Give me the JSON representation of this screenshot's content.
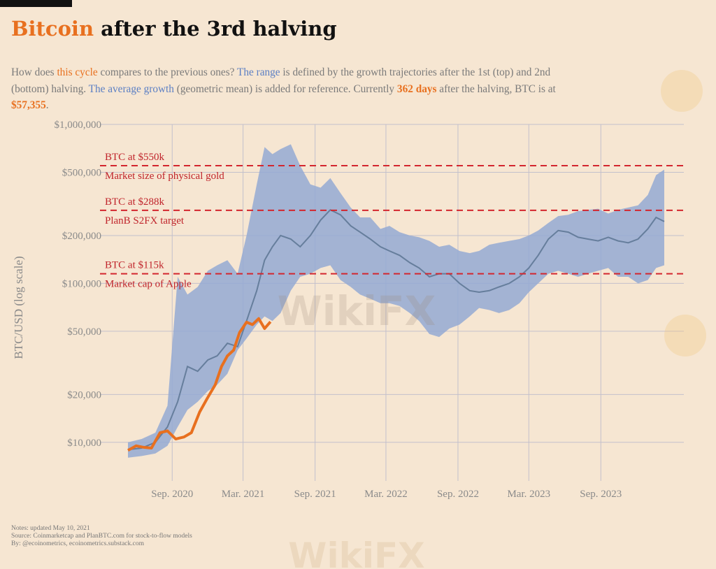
{
  "title": {
    "accent": "Bitcoin",
    "rest": " after the 3rd halving"
  },
  "subtitle": {
    "p1": "How does ",
    "this_cycle": "this cycle",
    "p2": " compares to the previous ones? ",
    "the_range": "The range",
    "p3": " is defined by the growth trajectories after the 1st (top) and 2nd (bottom) halving. ",
    "avg_growth": "The average growth",
    "p4": " (geometric mean) is added for reference. Currently ",
    "days": "362 days",
    "p5": " after the halving, BTC is at ",
    "price": "$57,355",
    "p6": "."
  },
  "notes": [
    "Notes: updated May 10, 2021",
    "Source: Coinmarketcap and PlanBTC.com for stock-to-flow models",
    "By: @ecoinometrics, ecoinometrics.substack.com"
  ],
  "watermark": "WikiFX",
  "colors": {
    "background": "#f6e6d2",
    "current_cycle": "#e8701f",
    "range_band": "#94a9d4",
    "average": "#667e9c",
    "reference_line": "#d3262e",
    "grid": "#c3c0cc"
  },
  "chart_data": {
    "type": "area",
    "ylabel": "BTC/USD (log scale)",
    "yscale": "log",
    "ylim": [
      7000,
      1000000
    ],
    "xlim": [
      "2020-05-11",
      "2024-03-31"
    ],
    "y_ticks": [
      {
        "value": 10000,
        "label": "$10,000"
      },
      {
        "value": 20000,
        "label": "$20,000"
      },
      {
        "value": 50000,
        "label": "$50,000"
      },
      {
        "value": 100000,
        "label": "$100,000"
      },
      {
        "value": 200000,
        "label": "$200,000"
      },
      {
        "value": 500000,
        "label": "$500,000"
      },
      {
        "value": 1000000,
        "label": "$1,000,000"
      }
    ],
    "x_ticks": [
      {
        "date": "2020-09-01",
        "label": "Sep. 2020"
      },
      {
        "date": "2021-03-01",
        "label": "Mar. 2021"
      },
      {
        "date": "2021-09-01",
        "label": "Sep. 2021"
      },
      {
        "date": "2022-03-01",
        "label": "Mar. 2022"
      },
      {
        "date": "2022-09-01",
        "label": "Sep. 2022"
      },
      {
        "date": "2023-03-01",
        "label": "Mar. 2023"
      },
      {
        "date": "2023-09-01",
        "label": "Sep. 2023"
      }
    ],
    "reference_lines": [
      {
        "value": 550000,
        "label": "BTC at $550k",
        "note": "Market size of physical gold"
      },
      {
        "value": 288000,
        "label": "BTC at $288k",
        "note": "PlanB S2FX target"
      },
      {
        "value": 115000,
        "label": "BTC at $115k",
        "note": "Market cap of Apple"
      }
    ],
    "range": {
      "name": "The range",
      "x": [
        "2020-05-11",
        "2020-06-15",
        "2020-07-20",
        "2020-08-20",
        "2020-09-15",
        "2020-10-10",
        "2020-11-05",
        "2020-12-01",
        "2020-12-25",
        "2021-01-20",
        "2021-02-15",
        "2021-03-10",
        "2021-04-05",
        "2021-04-25",
        "2021-05-15",
        "2021-06-05",
        "2021-07-01",
        "2021-07-25",
        "2021-08-20",
        "2021-09-15",
        "2021-10-10",
        "2021-11-05",
        "2021-12-01",
        "2021-12-25",
        "2022-01-20",
        "2022-02-15",
        "2022-03-10",
        "2022-04-05",
        "2022-05-01",
        "2022-05-25",
        "2022-06-20",
        "2022-07-15",
        "2022-08-10",
        "2022-09-05",
        "2022-10-01",
        "2022-10-25",
        "2022-11-20",
        "2022-12-15",
        "2023-01-10",
        "2023-02-05",
        "2023-03-01",
        "2023-03-25",
        "2023-04-20",
        "2023-05-15",
        "2023-06-10",
        "2023-07-05",
        "2023-07-30",
        "2023-08-25",
        "2023-09-20",
        "2023-10-15",
        "2023-11-10",
        "2023-12-05",
        "2023-12-30",
        "2024-01-20",
        "2024-02-10"
      ],
      "high": [
        10000,
        10500,
        11500,
        17000,
        110000,
        85000,
        95000,
        120000,
        130000,
        140000,
        115000,
        200000,
        420000,
        720000,
        650000,
        700000,
        750000,
        550000,
        420000,
        400000,
        460000,
        370000,
        300000,
        260000,
        260000,
        220000,
        230000,
        210000,
        200000,
        195000,
        185000,
        170000,
        175000,
        160000,
        155000,
        160000,
        175000,
        180000,
        185000,
        190000,
        200000,
        215000,
        240000,
        265000,
        270000,
        285000,
        290000,
        295000,
        275000,
        290000,
        300000,
        310000,
        360000,
        480000,
        520000
      ],
      "low": [
        8000,
        8200,
        8500,
        9500,
        12500,
        16000,
        18000,
        21000,
        23000,
        27000,
        38000,
        45000,
        55000,
        62000,
        58000,
        65000,
        90000,
        110000,
        115000,
        125000,
        130000,
        105000,
        95000,
        85000,
        80000,
        75000,
        75000,
        72000,
        65000,
        58000,
        48000,
        46000,
        52000,
        55000,
        62000,
        70000,
        68000,
        65000,
        68000,
        75000,
        88000,
        100000,
        115000,
        120000,
        115000,
        110000,
        115000,
        120000,
        125000,
        110000,
        110000,
        100000,
        105000,
        125000,
        130000
      ]
    },
    "average": {
      "name": "The average growth",
      "x": [
        "2020-05-11",
        "2020-06-15",
        "2020-07-20",
        "2020-08-20",
        "2020-09-15",
        "2020-10-10",
        "2020-11-05",
        "2020-12-01",
        "2020-12-25",
        "2021-01-20",
        "2021-02-15",
        "2021-03-10",
        "2021-04-05",
        "2021-04-25",
        "2021-05-15",
        "2021-06-05",
        "2021-07-01",
        "2021-07-25",
        "2021-08-20",
        "2021-09-15",
        "2021-10-10",
        "2021-11-05",
        "2021-12-01",
        "2021-12-25",
        "2022-01-20",
        "2022-02-15",
        "2022-03-10",
        "2022-04-05",
        "2022-05-01",
        "2022-05-25",
        "2022-06-20",
        "2022-07-15",
        "2022-08-10",
        "2022-09-05",
        "2022-10-01",
        "2022-10-25",
        "2022-11-20",
        "2022-12-15",
        "2023-01-10",
        "2023-02-05",
        "2023-03-01",
        "2023-03-25",
        "2023-04-20",
        "2023-05-15",
        "2023-06-10",
        "2023-07-05",
        "2023-07-30",
        "2023-08-25",
        "2023-09-20",
        "2023-10-15",
        "2023-11-10",
        "2023-12-05",
        "2023-12-30",
        "2024-01-20",
        "2024-02-10"
      ],
      "y": [
        9000,
        9200,
        10000,
        12500,
        18000,
        30000,
        28000,
        33000,
        35000,
        42000,
        40000,
        58000,
        90000,
        140000,
        170000,
        200000,
        190000,
        170000,
        200000,
        250000,
        290000,
        270000,
        230000,
        210000,
        190000,
        170000,
        160000,
        150000,
        135000,
        125000,
        110000,
        115000,
        115000,
        100000,
        90000,
        88000,
        90000,
        95000,
        100000,
        110000,
        125000,
        150000,
        190000,
        215000,
        210000,
        195000,
        190000,
        185000,
        195000,
        185000,
        180000,
        190000,
        220000,
        260000,
        245000
      ]
    },
    "current": {
      "name": "this cycle",
      "x": [
        "2020-05-11",
        "2020-06-01",
        "2020-06-20",
        "2020-07-10",
        "2020-08-01",
        "2020-08-20",
        "2020-09-10",
        "2020-10-01",
        "2020-10-20",
        "2020-11-10",
        "2020-11-30",
        "2020-12-20",
        "2021-01-05",
        "2021-01-20",
        "2021-02-05",
        "2021-02-20",
        "2021-03-10",
        "2021-03-25",
        "2021-04-10",
        "2021-04-25",
        "2021-05-10"
      ],
      "y": [
        8900,
        9500,
        9300,
        9200,
        11500,
        11800,
        10500,
        10800,
        11500,
        15500,
        19000,
        23000,
        30000,
        35000,
        38000,
        49000,
        57000,
        55000,
        60000,
        52000,
        57355
      ]
    }
  }
}
